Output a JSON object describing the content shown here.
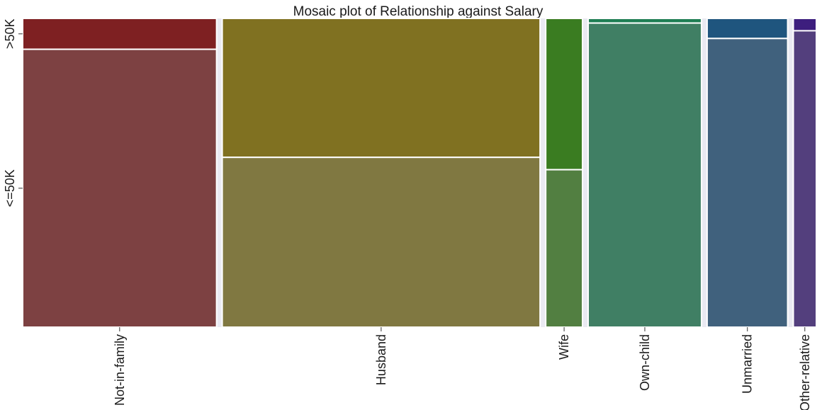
{
  "chart_data": {
    "type": "mosaic",
    "title": "Mosaic plot of Relationship against Salary",
    "xlabel": "",
    "ylabel": "",
    "categories": [
      "Not-in-family",
      "Husband",
      "Wife",
      "Own-child",
      "Unmarried",
      "Other-relative"
    ],
    "column_share": [
      0.2553,
      0.4185,
      0.0484,
      0.1492,
      0.106,
      0.0303
    ],
    "levels": [
      ">50K",
      "<=50K"
    ],
    "series": [
      {
        "name": ">50K",
        "values": [
          0.1,
          0.45,
          0.49,
          0.015,
          0.065,
          0.04
        ]
      },
      {
        "name": "<=50K",
        "values": [
          0.9,
          0.55,
          0.51,
          0.985,
          0.935,
          0.96
        ]
      }
    ],
    "ylim": [
      0,
      1
    ],
    "grid": false,
    "legend": "none"
  },
  "colors": {
    "background": "#eaeaf2",
    "outline": "#ffffff",
    "Not-in-family": {
      ">50K": "#7e2022",
      "<=50K": "#7d4142"
    },
    "Husband": {
      ">50K": "#807121",
      "<=50K": "#807841"
    },
    "Wife": {
      ">50K": "#3a7c21",
      "<=50K": "#527f41"
    },
    "Own-child": {
      ">50K": "#1f7e54",
      "<=50K": "#407f64"
    },
    "Unmarried": {
      ">50K": "#1f557e",
      "<=50K": "#40617d"
    },
    "Other-relative": {
      ">50K": "#3d1e7e",
      "<=50K": "#533f7d"
    }
  }
}
